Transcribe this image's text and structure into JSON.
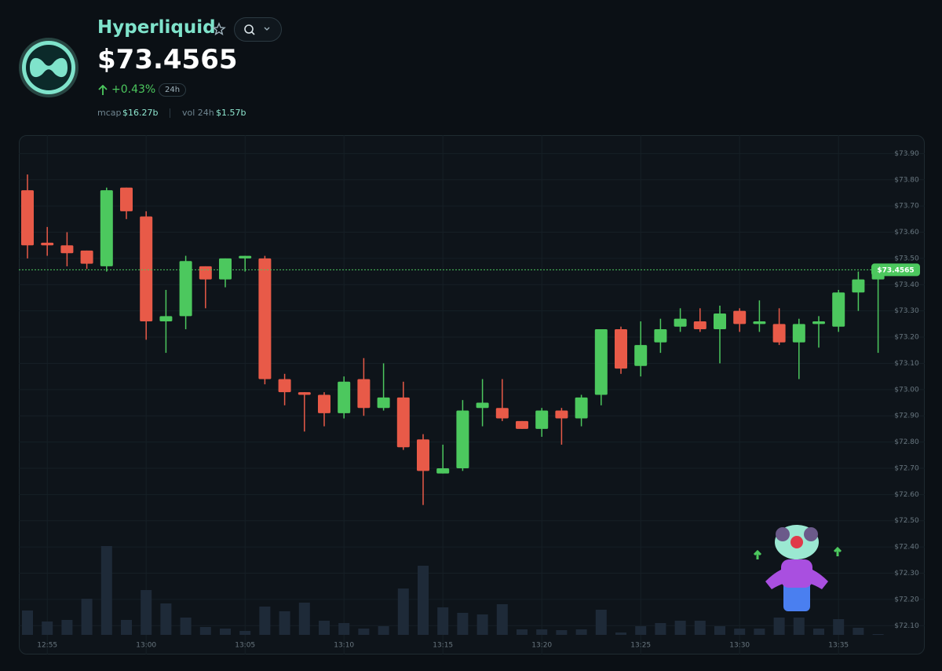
{
  "header": {
    "name": "Hyperliquid",
    "price": "$73.4565",
    "change": "+0.43%",
    "period": "24h",
    "mcap_label": "mcap",
    "mcap": "$16.27b",
    "vol_label": "vol 24h",
    "vol": "$1.57b"
  },
  "chart_data": {
    "type": "candlestick",
    "categories": [
      null,
      "12:55",
      null,
      null,
      null,
      null,
      "13:00",
      null,
      null,
      null,
      null,
      "13:05",
      null,
      null,
      null,
      null,
      "13:10",
      null,
      null,
      null,
      null,
      "13:15",
      null,
      null,
      null,
      null,
      "13:20",
      null,
      null,
      null,
      null,
      "13:25",
      null,
      null,
      null,
      null,
      "13:30",
      null,
      null,
      null,
      null,
      "13:35",
      null,
      null
    ],
    "open": [
      73.76,
      73.56,
      73.55,
      73.53,
      73.47,
      73.77,
      73.66,
      73.26,
      73.28,
      73.47,
      73.42,
      73.5,
      73.5,
      73.04,
      72.99,
      72.98,
      72.91,
      73.04,
      72.93,
      72.97,
      72.81,
      72.68,
      72.7,
      72.93,
      72.93,
      72.88,
      72.85,
      72.92,
      72.89,
      72.98,
      73.23,
      73.09,
      73.18,
      73.24,
      73.26,
      73.23,
      73.3,
      73.25,
      73.25,
      73.18,
      73.25,
      73.24,
      73.37,
      73.42
    ],
    "high": [
      73.82,
      73.62,
      73.6,
      73.53,
      73.77,
      73.77,
      73.68,
      73.38,
      73.51,
      73.47,
      73.5,
      73.51,
      73.51,
      73.06,
      72.99,
      72.99,
      73.05,
      73.12,
      73.1,
      73.03,
      72.83,
      72.79,
      72.96,
      73.04,
      73.04,
      72.88,
      72.93,
      72.93,
      72.98,
      73.23,
      73.24,
      73.26,
      73.27,
      73.31,
      73.31,
      73.32,
      73.31,
      73.34,
      73.31,
      73.27,
      73.28,
      73.38,
      73.45,
      73.47
    ],
    "low": [
      73.5,
      73.51,
      73.47,
      73.46,
      73.45,
      73.65,
      73.19,
      73.14,
      73.23,
      73.31,
      73.39,
      73.45,
      73.02,
      72.94,
      72.84,
      72.86,
      72.89,
      72.9,
      72.92,
      72.77,
      72.56,
      72.68,
      72.69,
      72.86,
      72.88,
      72.85,
      72.82,
      72.79,
      72.86,
      72.94,
      73.06,
      73.05,
      73.14,
      73.22,
      73.22,
      73.1,
      73.22,
      73.22,
      73.17,
      73.04,
      73.16,
      73.22,
      73.3,
      73.14
    ],
    "close": [
      73.55,
      73.55,
      73.52,
      73.48,
      73.76,
      73.68,
      73.26,
      73.28,
      73.49,
      73.42,
      73.5,
      73.51,
      73.04,
      72.99,
      72.98,
      72.91,
      73.03,
      72.93,
      72.97,
      72.78,
      72.69,
      72.7,
      72.92,
      72.95,
      72.89,
      72.85,
      72.92,
      72.89,
      72.97,
      73.23,
      73.08,
      73.17,
      73.23,
      73.27,
      73.23,
      73.29,
      73.25,
      73.26,
      73.18,
      73.25,
      73.26,
      73.37,
      73.42,
      73.4565
    ],
    "volume": [
      31,
      17,
      19,
      46,
      113,
      19,
      57,
      40,
      22,
      10,
      8,
      5,
      36,
      30,
      41,
      18,
      15,
      8,
      11,
      59,
      88,
      35,
      28,
      26,
      39,
      7,
      7,
      6,
      7,
      32,
      3,
      11,
      15,
      18,
      18,
      11,
      8,
      8,
      22,
      22,
      8,
      20,
      9,
      1
    ],
    "volume_lim": [
      0,
      120
    ],
    "ylim": [
      71.99,
      73.97
    ],
    "yticks": [
      {
        "value": 73.9,
        "label": "$73.90"
      },
      {
        "value": 73.8,
        "label": "$73.80"
      },
      {
        "value": 73.7,
        "label": "$73.70"
      },
      {
        "value": 73.6,
        "label": "$73.60"
      },
      {
        "value": 73.5,
        "label": "$73.50"
      },
      {
        "value": 73.4,
        "label": "$73.40"
      },
      {
        "value": 73.3,
        "label": "$73.30"
      },
      {
        "value": 73.2,
        "label": "$73.20"
      },
      {
        "value": 73.1,
        "label": "$73.10"
      },
      {
        "value": 73.0,
        "label": "$73.00"
      },
      {
        "value": 72.9,
        "label": "$72.90"
      },
      {
        "value": 72.8,
        "label": "$72.80"
      },
      {
        "value": 72.7,
        "label": "$72.70"
      },
      {
        "value": 72.6,
        "label": "$72.60"
      },
      {
        "value": 72.5,
        "label": "$72.50"
      },
      {
        "value": 72.4,
        "label": "$72.40"
      },
      {
        "value": 72.3,
        "label": "$72.30"
      },
      {
        "value": 72.2,
        "label": "$72.20"
      },
      {
        "value": 72.1,
        "label": "$72.10"
      }
    ],
    "last_price": {
      "value": 73.4565,
      "label": "$73.4565"
    },
    "up_color": "#4cc85e",
    "down_color": "#e85a48",
    "volume_color": "#1e2a38",
    "grid": true
  }
}
